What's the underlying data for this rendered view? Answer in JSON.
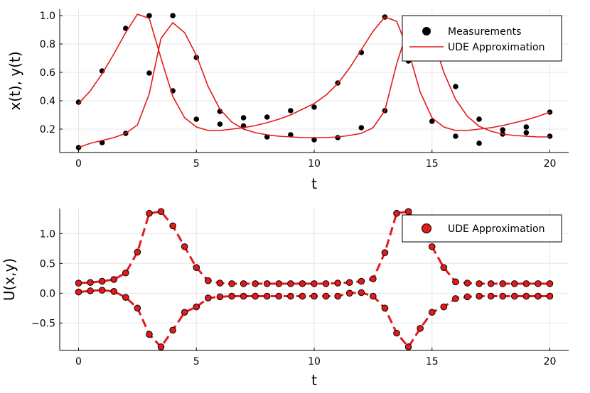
{
  "chart_data": [
    {
      "type": "scatter",
      "xlabel": "t",
      "ylabel": "x(t), y(t)",
      "xlim": [
        -0.8,
        20.8
      ],
      "ylim": [
        0.035,
        1.045
      ],
      "xticks": [
        0,
        5,
        10,
        15,
        20
      ],
      "yticks": [
        0.2,
        0.4,
        0.6,
        0.8,
        1.0
      ],
      "ytick_labels": [
        "0.2",
        "0.4",
        "0.6",
        "0.8",
        "1.0"
      ],
      "grid": true,
      "legend_position": "top-right",
      "series": [
        {
          "name": "Measurements",
          "kind": "points",
          "color": "#000000",
          "data": [
            [
              0,
              0.39
            ],
            [
              1,
              0.61
            ],
            [
              2,
              0.91
            ],
            [
              3,
              1.0
            ],
            [
              4,
              0.47
            ],
            [
              5,
              0.27
            ],
            [
              6,
              0.235
            ],
            [
              7,
              0.222
            ],
            [
              8,
              0.285
            ],
            [
              9,
              0.33
            ],
            [
              10,
              0.355
            ],
            [
              11,
              0.525
            ],
            [
              12,
              0.74
            ],
            [
              13,
              0.99
            ],
            [
              14,
              0.68
            ],
            [
              15,
              0.255
            ],
            [
              16,
              0.15
            ],
            [
              17,
              0.1
            ],
            [
              18,
              0.165
            ],
            [
              19,
              0.175
            ],
            [
              20,
              0.32
            ],
            [
              0,
              0.07
            ],
            [
              1,
              0.105
            ],
            [
              2,
              0.17
            ],
            [
              3,
              0.595
            ],
            [
              4,
              1.0
            ],
            [
              5,
              0.705
            ],
            [
              6,
              0.325
            ],
            [
              7,
              0.28
            ],
            [
              8,
              0.145
            ],
            [
              9,
              0.16
            ],
            [
              10,
              0.125
            ],
            [
              11,
              0.14
            ],
            [
              12,
              0.21
            ],
            [
              13,
              0.33
            ],
            [
              14,
              0.8
            ],
            [
              15,
              0.97
            ],
            [
              16,
              0.5
            ],
            [
              17,
              0.27
            ],
            [
              18,
              0.195
            ],
            [
              19,
              0.215
            ],
            [
              20,
              0.15
            ]
          ]
        },
        {
          "name": "UDE Approximation",
          "kind": "line",
          "color": "#e31a1c",
          "lines": [
            [
              [
                0,
                0.38
              ],
              [
                0.5,
                0.47
              ],
              [
                1,
                0.59
              ],
              [
                1.5,
                0.73
              ],
              [
                2,
                0.88
              ],
              [
                2.5,
                1.01
              ],
              [
                3,
                0.98
              ],
              [
                3.5,
                0.7
              ],
              [
                4,
                0.43
              ],
              [
                4.5,
                0.28
              ],
              [
                5,
                0.215
              ],
              [
                5.5,
                0.19
              ],
              [
                6,
                0.19
              ],
              [
                6.5,
                0.2
              ],
              [
                7,
                0.21
              ],
              [
                7.5,
                0.225
              ],
              [
                8,
                0.245
              ],
              [
                8.5,
                0.27
              ],
              [
                9,
                0.3
              ],
              [
                9.5,
                0.34
              ],
              [
                10,
                0.38
              ],
              [
                10.5,
                0.44
              ],
              [
                11,
                0.52
              ],
              [
                11.5,
                0.63
              ],
              [
                12,
                0.76
              ],
              [
                12.5,
                0.89
              ],
              [
                13,
                0.99
              ],
              [
                13.5,
                0.96
              ],
              [
                14,
                0.75
              ],
              [
                14.5,
                0.46
              ],
              [
                15,
                0.28
              ],
              [
                15.5,
                0.215
              ],
              [
                16,
                0.19
              ],
              [
                16.5,
                0.19
              ],
              [
                17,
                0.2
              ],
              [
                17.5,
                0.21
              ],
              [
                18,
                0.225
              ],
              [
                18.5,
                0.245
              ],
              [
                19,
                0.265
              ],
              [
                19.5,
                0.29
              ],
              [
                20,
                0.32
              ]
            ],
            [
              [
                0,
                0.07
              ],
              [
                0.5,
                0.1
              ],
              [
                1,
                0.12
              ],
              [
                1.5,
                0.14
              ],
              [
                2,
                0.17
              ],
              [
                2.5,
                0.23
              ],
              [
                3,
                0.45
              ],
              [
                3.5,
                0.84
              ],
              [
                4,
                0.95
              ],
              [
                4.5,
                0.88
              ],
              [
                5,
                0.72
              ],
              [
                5.5,
                0.5
              ],
              [
                6,
                0.34
              ],
              [
                6.5,
                0.25
              ],
              [
                7,
                0.2
              ],
              [
                7.5,
                0.175
              ],
              [
                8,
                0.16
              ],
              [
                8.5,
                0.15
              ],
              [
                9,
                0.145
              ],
              [
                9.5,
                0.14
              ],
              [
                10,
                0.14
              ],
              [
                10.5,
                0.14
              ],
              [
                11,
                0.145
              ],
              [
                11.5,
                0.155
              ],
              [
                12,
                0.17
              ],
              [
                12.5,
                0.21
              ],
              [
                13,
                0.33
              ],
              [
                13.5,
                0.66
              ],
              [
                14,
                0.92
              ],
              [
                14.5,
                0.96
              ],
              [
                15,
                0.86
              ],
              [
                15.5,
                0.6
              ],
              [
                16,
                0.41
              ],
              [
                16.5,
                0.29
              ],
              [
                17,
                0.22
              ],
              [
                17.5,
                0.185
              ],
              [
                18,
                0.165
              ],
              [
                18.5,
                0.155
              ],
              [
                19,
                0.15
              ],
              [
                19.5,
                0.145
              ],
              [
                20,
                0.145
              ]
            ]
          ]
        }
      ]
    },
    {
      "type": "line",
      "xlabel": "t",
      "ylabel": "U(x,y)",
      "xlim": [
        -0.8,
        20.8
      ],
      "ylim": [
        -0.96,
        1.42
      ],
      "xticks": [
        0,
        5,
        10,
        15,
        20
      ],
      "yticks": [
        -0.5,
        0.0,
        0.5,
        1.0
      ],
      "ytick_labels": [
        "−0.5",
        "0.0",
        "0.5",
        "1.0"
      ],
      "grid": true,
      "legend_position": "top-right",
      "series": [
        {
          "name": "UDE Approximation",
          "kind": "dashed-line-with-markers",
          "color": "#e31a1c",
          "marker_color": "#e31a1c",
          "lines": [
            [
              [
                0,
                0.17
              ],
              [
                0.5,
                0.18
              ],
              [
                1,
                0.2
              ],
              [
                1.5,
                0.23
              ],
              [
                2,
                0.34
              ],
              [
                2.5,
                0.69
              ],
              [
                3,
                1.34
              ],
              [
                3.5,
                1.37
              ],
              [
                4,
                1.13
              ],
              [
                4.5,
                0.78
              ],
              [
                5,
                0.43
              ],
              [
                5.5,
                0.21
              ],
              [
                6,
                0.17
              ],
              [
                6.5,
                0.16
              ],
              [
                7,
                0.16
              ],
              [
                7.5,
                0.16
              ],
              [
                8,
                0.16
              ],
              [
                8.5,
                0.16
              ],
              [
                9,
                0.16
              ],
              [
                9.5,
                0.16
              ],
              [
                10,
                0.16
              ],
              [
                10.5,
                0.16
              ],
              [
                11,
                0.17
              ],
              [
                11.5,
                0.18
              ],
              [
                12,
                0.2
              ],
              [
                12.5,
                0.24
              ],
              [
                13,
                0.68
              ],
              [
                13.5,
                1.34
              ],
              [
                14,
                1.37
              ],
              [
                14.5,
                1.12
              ],
              [
                15,
                0.78
              ],
              [
                15.5,
                0.43
              ],
              [
                16,
                0.19
              ],
              [
                16.5,
                0.17
              ],
              [
                17,
                0.16
              ],
              [
                17.5,
                0.16
              ],
              [
                18,
                0.16
              ],
              [
                18.5,
                0.16
              ],
              [
                19,
                0.16
              ],
              [
                19.5,
                0.16
              ],
              [
                20,
                0.16
              ]
            ],
            [
              [
                0,
                0.02
              ],
              [
                0.5,
                0.04
              ],
              [
                1,
                0.05
              ],
              [
                1.5,
                0.03
              ],
              [
                2,
                -0.07
              ],
              [
                2.5,
                -0.25
              ],
              [
                3,
                -0.69
              ],
              [
                3.5,
                -0.9
              ],
              [
                4,
                -0.62
              ],
              [
                4.5,
                -0.32
              ],
              [
                5,
                -0.23
              ],
              [
                5.5,
                -0.08
              ],
              [
                6,
                -0.06
              ],
              [
                6.5,
                -0.05
              ],
              [
                7,
                -0.05
              ],
              [
                7.5,
                -0.05
              ],
              [
                8,
                -0.05
              ],
              [
                8.5,
                -0.05
              ],
              [
                9,
                -0.05
              ],
              [
                9.5,
                -0.05
              ],
              [
                10,
                -0.05
              ],
              [
                10.5,
                -0.05
              ],
              [
                11,
                -0.05
              ],
              [
                11.5,
                0.0
              ],
              [
                12,
                0.01
              ],
              [
                12.5,
                -0.05
              ],
              [
                13,
                -0.25
              ],
              [
                13.5,
                -0.67
              ],
              [
                14,
                -0.9
              ],
              [
                14.5,
                -0.59
              ],
              [
                15,
                -0.32
              ],
              [
                15.5,
                -0.23
              ],
              [
                16,
                -0.09
              ],
              [
                16.5,
                -0.06
              ],
              [
                17,
                -0.05
              ],
              [
                17.5,
                -0.05
              ],
              [
                18,
                -0.05
              ],
              [
                18.5,
                -0.05
              ],
              [
                19,
                -0.05
              ],
              [
                19.5,
                -0.05
              ],
              [
                20,
                -0.05
              ]
            ]
          ]
        }
      ]
    }
  ]
}
